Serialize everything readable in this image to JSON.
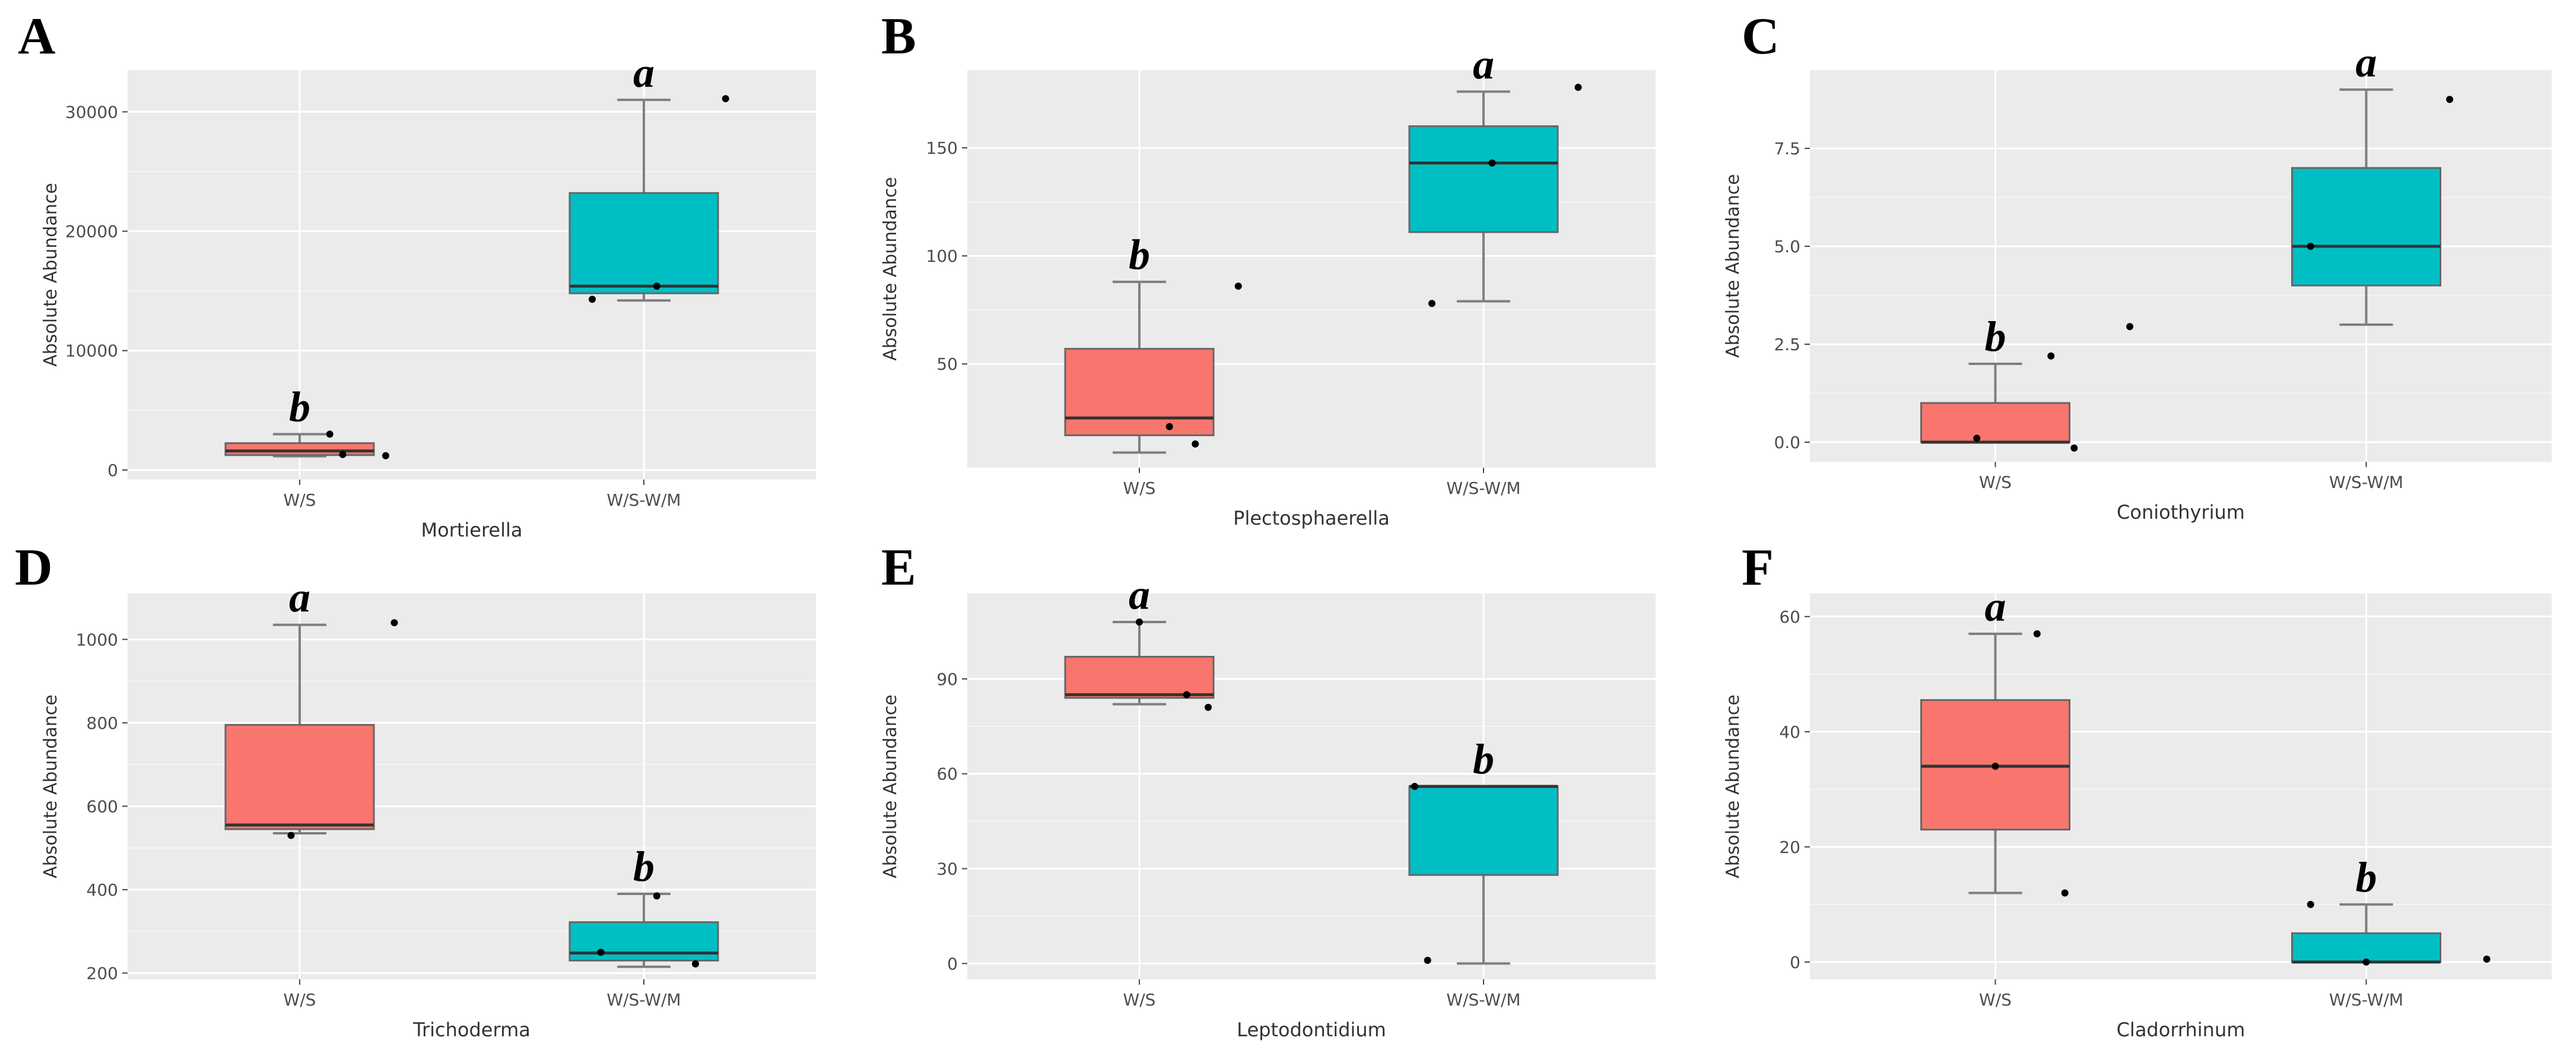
{
  "colors": {
    "ws": "#F8766D",
    "wswm": "#00BFC4",
    "panel_bg": "#EBEBEB",
    "grid": "#FFFFFF"
  },
  "chart_data": [
    {
      "type": "box",
      "panel": "A",
      "xlabel": "Mortierella",
      "ylabel": "Absolute Abundance",
      "ylim": [
        -800,
        33500
      ],
      "yticks": [
        0,
        10000,
        20000,
        30000
      ],
      "ytick_labels": [
        "0",
        "10000",
        "20000",
        "30000"
      ],
      "categories": [
        "W/S",
        "W/S-W/M"
      ],
      "boxes": [
        {
          "min": 1150,
          "q1": 1250,
          "median": 1600,
          "q3": 2250,
          "max": 3000,
          "fill": "#F8766D",
          "sig": "b",
          "points": [
            {
              "dx": 0.35,
              "y": 3000
            },
            {
              "dx": 0.5,
              "y": 1300
            },
            {
              "dx": 1.0,
              "y": 1200
            }
          ]
        },
        {
          "min": 14200,
          "q1": 14800,
          "median": 15400,
          "q3": 23200,
          "max": 31000,
          "fill": "#00BFC4",
          "sig": "a",
          "points": [
            {
              "dx": -0.6,
              "y": 14300
            },
            {
              "dx": 0.15,
              "y": 15400
            },
            {
              "dx": 0.95,
              "y": 31100
            }
          ]
        }
      ]
    },
    {
      "type": "box",
      "panel": "B",
      "xlabel": "Plectosphaerella",
      "ylabel": "Absolute Abundance",
      "ylim": [
        2,
        186
      ],
      "yticks": [
        50,
        100,
        150
      ],
      "ytick_labels": [
        "50",
        "100",
        "150"
      ],
      "categories": [
        "W/S",
        "W/S-W/M"
      ],
      "boxes": [
        {
          "min": 9,
          "q1": 17,
          "median": 25,
          "q3": 57,
          "max": 88,
          "fill": "#F8766D",
          "sig": "b",
          "points": [
            {
              "dx": 0.35,
              "y": 21
            },
            {
              "dx": 0.65,
              "y": 13
            },
            {
              "dx": 1.15,
              "y": 86
            }
          ]
        },
        {
          "min": 79,
          "q1": 111,
          "median": 143,
          "q3": 160,
          "max": 176,
          "fill": "#00BFC4",
          "sig": "a",
          "points": [
            {
              "dx": -0.6,
              "y": 78
            },
            {
              "dx": 0.1,
              "y": 143
            },
            {
              "dx": 1.1,
              "y": 178
            }
          ]
        }
      ]
    },
    {
      "type": "box",
      "panel": "C",
      "xlabel": "Coniothyrium",
      "ylabel": "Absolute Abundance",
      "ylim": [
        -0.5,
        9.5
      ],
      "yticks": [
        0,
        2.5,
        5,
        7.5
      ],
      "ytick_labels": [
        "0.0",
        "2.5",
        "5.0",
        "7.5"
      ],
      "categories": [
        "W/S",
        "W/S-W/M"
      ],
      "boxes": [
        {
          "min": 0,
          "q1": 0,
          "median": 0,
          "q3": 1,
          "max": 2,
          "fill": "#F8766D",
          "sig": "b",
          "points": [
            {
              "dx": -0.2,
              "y": 0.1
            },
            {
              "dx": 0.6,
              "y": 2.2
            },
            {
              "dx": 0.85,
              "y": -0.15
            },
            {
              "dx": 1.45,
              "y": 2.95
            }
          ]
        },
        {
          "min": 3,
          "q1": 4,
          "median": 5,
          "q3": 7,
          "max": 9,
          "fill": "#00BFC4",
          "sig": "a",
          "points": [
            {
              "dx": -0.6,
              "y": 5
            },
            {
              "dx": 0.9,
              "y": 8.75
            }
          ]
        }
      ]
    },
    {
      "type": "box",
      "panel": "D",
      "xlabel": "Trichoderma",
      "ylabel": "Absolute Abundance",
      "ylim": [
        185,
        1110
      ],
      "yticks": [
        200,
        400,
        600,
        800,
        1000
      ],
      "ytick_labels": [
        "200",
        "400",
        "600",
        "800",
        "1000"
      ],
      "categories": [
        "W/S",
        "W/S-W/M"
      ],
      "boxes": [
        {
          "min": 535,
          "q1": 545,
          "median": 555,
          "q3": 795,
          "max": 1035,
          "fill": "#F8766D",
          "sig": "a",
          "points": [
            {
              "dx": -0.1,
              "y": 530
            },
            {
              "dx": 1.1,
              "y": 1040
            }
          ]
        },
        {
          "min": 215,
          "q1": 230,
          "median": 248,
          "q3": 322,
          "max": 390,
          "fill": "#00BFC4",
          "sig": "b",
          "points": [
            {
              "dx": -0.5,
              "y": 250
            },
            {
              "dx": 0.15,
              "y": 385
            },
            {
              "dx": 0.6,
              "y": 222
            }
          ]
        }
      ]
    },
    {
      "type": "box",
      "panel": "E",
      "xlabel": "Leptodontidium",
      "ylabel": "Absolute Abundance",
      "ylim": [
        -5,
        117
      ],
      "yticks": [
        0,
        30,
        60,
        90
      ],
      "ytick_labels": [
        "0",
        "30",
        "60",
        "90"
      ],
      "categories": [
        "W/S",
        "W/S-W/M"
      ],
      "boxes": [
        {
          "min": 82,
          "q1": 84,
          "median": 85,
          "q3": 97,
          "max": 108,
          "fill": "#F8766D",
          "sig": "a",
          "points": [
            {
              "dx": 0.0,
              "y": 108
            },
            {
              "dx": 0.55,
              "y": 85
            },
            {
              "dx": 0.8,
              "y": 81
            }
          ]
        },
        {
          "min": 0,
          "q1": 28,
          "median": 56,
          "q3": 56,
          "max": 56,
          "fill": "#00BFC4",
          "sig": "b",
          "points": [
            {
              "dx": -0.8,
              "y": 56
            },
            {
              "dx": -0.65,
              "y": 1
            }
          ]
        }
      ]
    },
    {
      "type": "box",
      "panel": "F",
      "xlabel": "Cladorrhinum",
      "ylabel": "Absolute Abundance",
      "ylim": [
        -3,
        64
      ],
      "yticks": [
        0,
        20,
        40,
        60
      ],
      "ytick_labels": [
        "0",
        "20",
        "40",
        "60"
      ],
      "categories": [
        "W/S",
        "W/S-W/M"
      ],
      "boxes": [
        {
          "min": 12,
          "q1": 23,
          "median": 34,
          "q3": 45.5,
          "max": 57,
          "fill": "#F8766D",
          "sig": "a",
          "points": [
            {
              "dx": 0.0,
              "y": 34
            },
            {
              "dx": 0.45,
              "y": 57
            },
            {
              "dx": 0.75,
              "y": 12
            }
          ]
        },
        {
          "min": 0,
          "q1": 0,
          "median": 0,
          "q3": 5,
          "max": 10,
          "fill": "#00BFC4",
          "sig": "b",
          "points": [
            {
              "dx": -0.6,
              "y": 10
            },
            {
              "dx": 0.0,
              "y": 0
            },
            {
              "dx": 1.3,
              "y": 0.5
            }
          ]
        }
      ]
    }
  ]
}
